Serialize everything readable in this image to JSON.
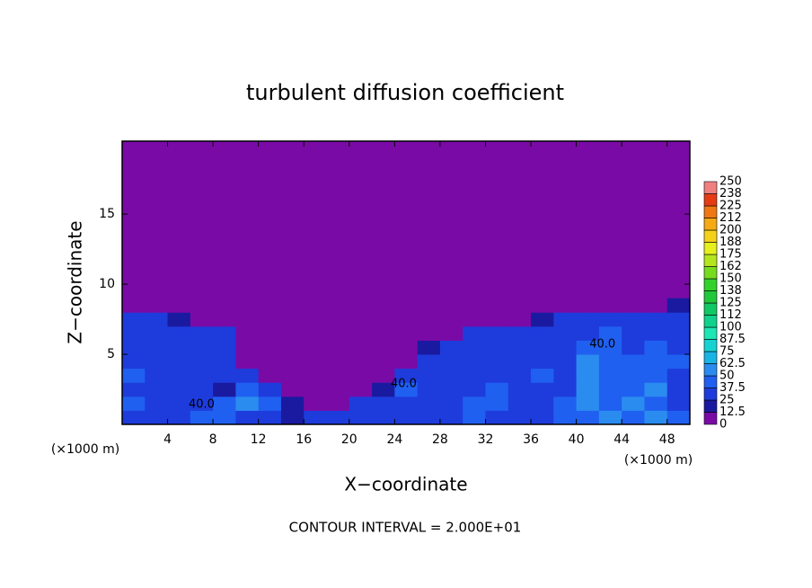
{
  "chart_data": {
    "type": "contour",
    "title": "turbulent diffusion coefficient",
    "xlabel": "X−coordinate",
    "ylabel": "Z−coordinate",
    "x_unit": "(×1000 m)",
    "footer": "CONTOUR INTERVAL = 2.000E+01",
    "xlim": [
      0,
      50
    ],
    "ylim": [
      0,
      20.2
    ],
    "xticks": [
      4,
      8,
      12,
      16,
      20,
      24,
      28,
      32,
      36,
      40,
      44,
      48
    ],
    "yticks": [
      5,
      10,
      15
    ],
    "x_edges": [
      0,
      2,
      4,
      6,
      8,
      10,
      12,
      14,
      16,
      18,
      20,
      22,
      24,
      26,
      28,
      30,
      32,
      34,
      36,
      38,
      40,
      42,
      44,
      46,
      48,
      50
    ],
    "z_edges": [
      0,
      1,
      2,
      3,
      4,
      5,
      6,
      7,
      8,
      9
    ],
    "values": [
      [
        35,
        30,
        30,
        40,
        45,
        30,
        25,
        20,
        25,
        30,
        35,
        30,
        30,
        35,
        35,
        40,
        30,
        30,
        35,
        40,
        45,
        50,
        40,
        55,
        40
      ],
      [
        40,
        35,
        30,
        30,
        45,
        55,
        40,
        15,
        10,
        5,
        25,
        30,
        35,
        30,
        35,
        40,
        40,
        35,
        30,
        40,
        50,
        40,
        50,
        40,
        35
      ],
      [
        35,
        30,
        25,
        30,
        20,
        45,
        30,
        10,
        5,
        5,
        5,
        15,
        40,
        35,
        30,
        35,
        40,
        30,
        35,
        35,
        50,
        45,
        45,
        50,
        35
      ],
      [
        40,
        30,
        25,
        35,
        25,
        30,
        10,
        10,
        5,
        5,
        5,
        5,
        25,
        30,
        30,
        35,
        35,
        30,
        40,
        35,
        55,
        45,
        40,
        40,
        35
      ],
      [
        35,
        30,
        30,
        35,
        35,
        10,
        5,
        5,
        5,
        5,
        5,
        5,
        10,
        30,
        35,
        30,
        35,
        30,
        35,
        35,
        55,
        45,
        40,
        45,
        40
      ],
      [
        30,
        30,
        35,
        30,
        30,
        5,
        5,
        5,
        5,
        5,
        5,
        5,
        5,
        15,
        30,
        30,
        35,
        30,
        30,
        35,
        40,
        45,
        35,
        40,
        35
      ],
      [
        30,
        30,
        30,
        30,
        25,
        5,
        5,
        5,
        5,
        5,
        5,
        5,
        5,
        5,
        5,
        25,
        30,
        30,
        35,
        30,
        35,
        40,
        35,
        35,
        35
      ],
      [
        25,
        25,
        20,
        10,
        5,
        5,
        5,
        5,
        5,
        5,
        5,
        5,
        5,
        5,
        5,
        5,
        5,
        10,
        20,
        25,
        30,
        30,
        35,
        30,
        30
      ],
      [
        0,
        0,
        0,
        0,
        0,
        0,
        0,
        0,
        0,
        0,
        0,
        0,
        0,
        0,
        0,
        0,
        0,
        0,
        0,
        0,
        0,
        5,
        10,
        5,
        15
      ]
    ],
    "contour_labels": [
      {
        "text": "40.0",
        "x": 7,
        "z": 1.4
      },
      {
        "text": "40.0",
        "x": 24.8,
        "z": 2.9
      },
      {
        "text": "40.0",
        "x": 42.3,
        "z": 5.7
      }
    ],
    "colorbar": {
      "levels": [
        0,
        12.5,
        25,
        37.5,
        50,
        62.5,
        75,
        87.5,
        100,
        112,
        125,
        138,
        150,
        162,
        175,
        188,
        200,
        212,
        225,
        238,
        250
      ],
      "colors": [
        "#7a0aa6",
        "#1a1aa0",
        "#1e3cdc",
        "#2060f0",
        "#2b8cf0",
        "#19b4e6",
        "#18d2d2",
        "#1ee6b4",
        "#10d28c",
        "#10c864",
        "#22c83c",
        "#32d22a",
        "#78dc1e",
        "#b4e61e",
        "#e6f01e",
        "#f5d21a",
        "#f5aa14",
        "#f07814",
        "#e63c14",
        "#f08080"
      ]
    }
  }
}
